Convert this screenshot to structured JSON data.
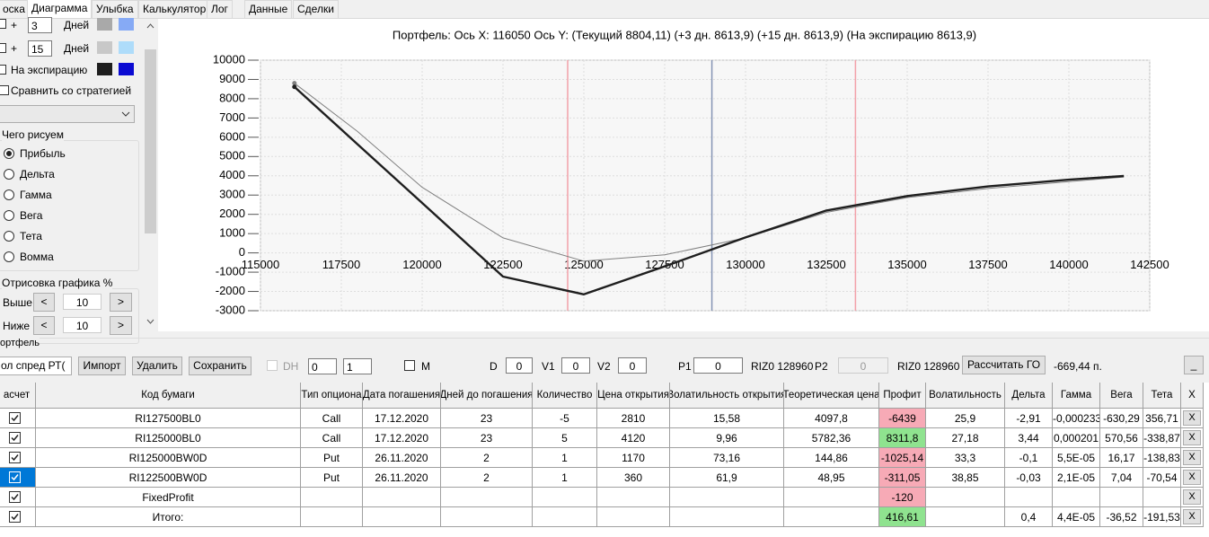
{
  "tabs": [
    "оска",
    "Диаграмма",
    "Улыбка",
    "Калькулятор",
    "Лог",
    "Данные",
    "Сделки"
  ],
  "left_panel": {
    "rows": [
      {
        "plus": "+",
        "days": "3",
        "label": "Дней"
      },
      {
        "plus": "+",
        "days": "15",
        "label": "Дней"
      }
    ],
    "expiration": "На экспирацию",
    "compare": "Сравнить со стратегией",
    "draw_group": {
      "title": "Чего рисуем",
      "options": [
        "Прибыль",
        "Дельта",
        "Гамма",
        "Вега",
        "Тета",
        "Вомма"
      ]
    },
    "render_group": {
      "title": "Отрисовка графика %",
      "prev": "<",
      "next": ">",
      "rows": [
        {
          "label": "Выше",
          "value": "10"
        },
        {
          "label": "Ниже",
          "value": "10"
        }
      ]
    }
  },
  "chart_data": {
    "type": "line",
    "title": "Портфель: Ось X: 116050 Ось Y:  (Текущий 8804,11)  (+3 дн. 8613,9)  (+15 дн. 8613,9)  (На экспирацию 8613,9)",
    "x": [
      116050,
      118000,
      120000,
      122500,
      125000,
      127500,
      130000,
      132500,
      135000,
      137500,
      140000,
      141700
    ],
    "series": [
      {
        "color": "#808080",
        "values": [
          8804,
          6300,
          3400,
          780,
          -430,
          -100,
          780,
          2100,
          2870,
          3340,
          3700,
          3940
        ]
      },
      {
        "color": "#1e1e1e",
        "values": [
          8614,
          5640,
          2590,
          -1230,
          -2150,
          -700,
          800,
          2200,
          2950,
          3450,
          3800,
          3990
        ]
      }
    ],
    "vlines": [
      {
        "value": 124500,
        "color": "#f2a0a8"
      },
      {
        "value": 128960,
        "color": "#8494b4"
      },
      {
        "value": 133400,
        "color": "#f2a0a8"
      }
    ],
    "xlim": [
      115000,
      142500
    ],
    "ylim": [
      -3000,
      10000
    ],
    "xticks": [
      115000,
      117500,
      120000,
      122500,
      125000,
      127500,
      130000,
      132500,
      135000,
      137500,
      140000,
      142500
    ],
    "yticks": [
      -3000,
      -2000,
      -1000,
      0,
      1000,
      2000,
      3000,
      4000,
      5000,
      6000,
      7000,
      8000,
      9000,
      10000
    ],
    "grid": true
  },
  "portfolio": {
    "title": "ортфель",
    "strategy": "ол спред РТ(",
    "buttons": [
      "Импорт",
      "Удалить",
      "Сохранить"
    ],
    "dh": "DH",
    "spin1": "0",
    "spin2": "1",
    "m": "M",
    "d_label": "D",
    "d": "0",
    "v1_label": "V1",
    "v1": "0",
    "v2_label": "V2",
    "v2": "0",
    "p1_label": "P1",
    "p1": "0",
    "p1_ticker": "RIZ0 128960",
    "p2_label": "P2",
    "p2": "0",
    "p2_ticker": "RIZ0 128960",
    "calc": "Рассчитать ГО",
    "go": "-669,44 п.",
    "minimize": "_"
  },
  "table": {
    "headers": [
      "асчет",
      "Код бумаги",
      "Тип опциона",
      "Дата погашения",
      "Дней до погашения",
      "Количество",
      "Цена открытия",
      "Волатильность открытия",
      "Теоретическая цена",
      "Профит",
      "Волатильность",
      "Дельта",
      "Гамма",
      "Вега",
      "Тета",
      "X"
    ],
    "delete": "X",
    "selected_row": 3,
    "profit_colors": [
      "#f7aab6",
      "#8fe38f",
      "#f7aab6",
      "#f7aab6",
      "#f7aab6",
      "#8fe38f"
    ],
    "rows": [
      [
        "RI127500BL0",
        "Call",
        "17.12.2020",
        "23",
        "-5",
        "2810",
        "15,58",
        "4097,8",
        "-6439",
        "25,9",
        "-2,91",
        "-0,000233",
        "-630,29",
        "356,71"
      ],
      [
        "RI125000BL0",
        "Call",
        "17.12.2020",
        "23",
        "5",
        "4120",
        "9,96",
        "5782,36",
        "8311,8",
        "27,18",
        "3,44",
        "0,000201",
        "570,56",
        "-338,87"
      ],
      [
        "RI125000BW0D",
        "Put",
        "26.11.2020",
        "2",
        "1",
        "1170",
        "73,16",
        "144,86",
        "-1025,14",
        "33,3",
        "-0,1",
        "5,5E-05",
        "16,17",
        "-138,83"
      ],
      [
        "RI122500BW0D",
        "Put",
        "26.11.2020",
        "2",
        "1",
        "360",
        "61,9",
        "48,95",
        "-311,05",
        "38,85",
        "-0,03",
        "2,1E-05",
        "7,04",
        "-70,54"
      ],
      [
        "FixedProfit",
        null,
        null,
        null,
        null,
        null,
        null,
        null,
        "-120",
        null,
        null,
        null,
        null,
        null
      ],
      [
        "Итого:",
        null,
        null,
        null,
        null,
        null,
        null,
        null,
        "416,61",
        null,
        "0,4",
        "4,4E-05",
        "-36,52",
        "-191,53"
      ]
    ]
  }
}
